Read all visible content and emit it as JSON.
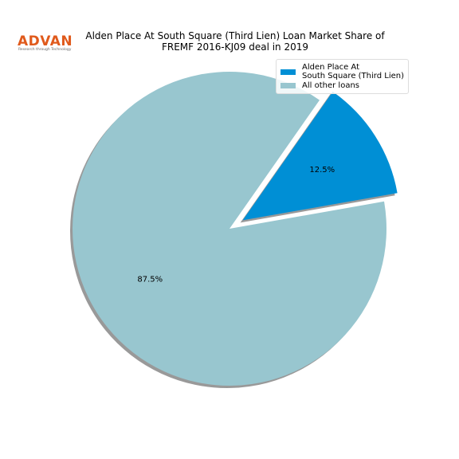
{
  "logo": {
    "text": "ADVAN",
    "tagline": "Research through Technology"
  },
  "chart_data": {
    "type": "pie",
    "title": "Alden Place At South Square (Third Lien) Loan Market Share of\nFREMF 2016-KJ09 deal in 2019",
    "categories": [
      "Alden Place At\nSouth Square (Third Lien)",
      "All other loans"
    ],
    "values": [
      12.5,
      87.5
    ],
    "value_labels": [
      "12.5%",
      "87.5%"
    ],
    "colors": [
      "#008fd5",
      "#98c6cf"
    ],
    "legend": "upper right"
  }
}
